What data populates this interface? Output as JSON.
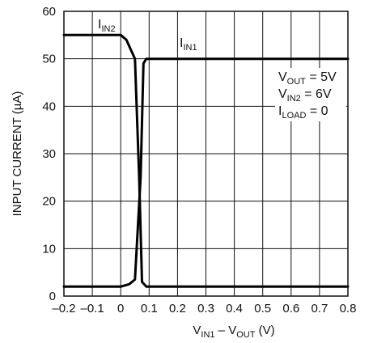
{
  "chart_data": {
    "type": "line",
    "title": "",
    "xlabel": "V_IN1 – V_OUT (V)",
    "ylabel": "INPUT CURRENT (µA)",
    "xlim": [
      -0.2,
      0.8
    ],
    "ylim": [
      0,
      60
    ],
    "x_ticks": [
      -0.2,
      -0.1,
      0,
      0.1,
      0.2,
      0.3,
      0.4,
      0.5,
      0.6,
      0.7,
      0.8
    ],
    "x_tick_labels": [
      "–0.2",
      "–0.1",
      "0",
      "0.1",
      "0.2",
      "0.3",
      "0.4",
      "0.5",
      "0.6",
      "0.7",
      "0.8"
    ],
    "y_ticks": [
      0,
      10,
      20,
      30,
      40,
      50,
      60
    ],
    "y_tick_labels": [
      "0",
      "10",
      "20",
      "30",
      "40",
      "50",
      "60"
    ],
    "grid": true,
    "series": [
      {
        "name": "I_IN2",
        "x": [
          -0.2,
          0.0,
          0.02,
          0.05,
          0.065,
          0.075,
          0.09,
          0.1,
          0.8
        ],
        "y": [
          55,
          55,
          54,
          50,
          25,
          3,
          2,
          2,
          2
        ]
      },
      {
        "name": "I_IN1",
        "x": [
          -0.2,
          0.0,
          0.03,
          0.05,
          0.07,
          0.08,
          0.09,
          0.1,
          0.8
        ],
        "y": [
          2,
          2,
          2.5,
          3.5,
          25,
          49,
          50,
          50,
          50
        ]
      }
    ],
    "annotations": [
      {
        "main": "V",
        "sub": "OUT",
        "rest": " = 5V"
      },
      {
        "main": "V",
        "sub": "IN2",
        "rest": " = 6V"
      },
      {
        "main": "I",
        "sub": "LOAD",
        "rest": " = 0"
      }
    ]
  },
  "labels": {
    "series_label_1": {
      "main": "I",
      "sub": "IN2"
    },
    "series_label_2": {
      "main": "I",
      "sub": "IN1"
    },
    "xlabel": {
      "v1": "V",
      "s1": "IN1",
      "mid": " – V",
      "s2": "OUT",
      "rest": " (V)"
    },
    "ylabel": "INPUT CURRENT (µA)"
  }
}
